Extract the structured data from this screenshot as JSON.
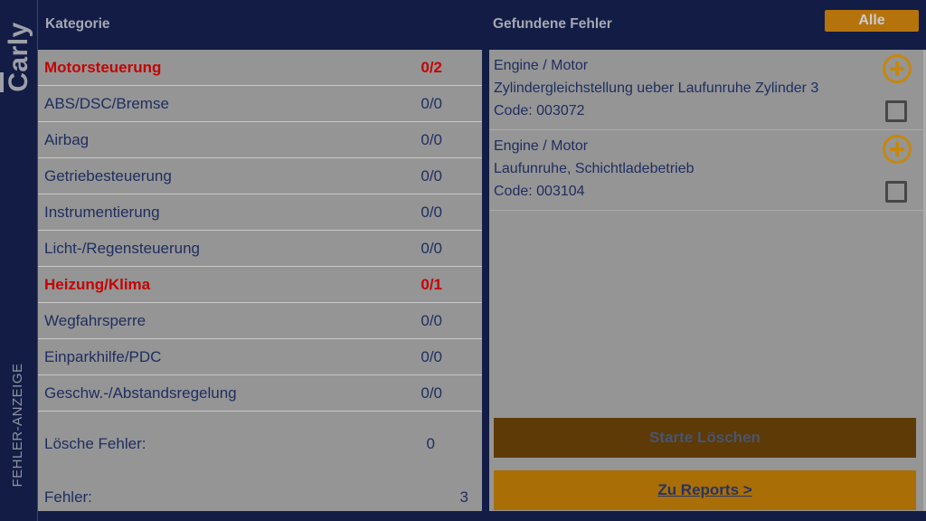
{
  "app": {
    "logo": "arly",
    "logo_first_letter": "C",
    "screen_label": "FEHLER-ANZEIGE"
  },
  "header": {
    "categories_title": "Kategorie",
    "errors_title": "Gefundene Fehler",
    "alle_button_label": "Alle"
  },
  "categories": {
    "items": [
      {
        "label": "Motorsteuerung",
        "count": "0/2",
        "alert": true
      },
      {
        "label": "ABS/DSC/Bremse",
        "count": "0/0",
        "alert": false
      },
      {
        "label": "Airbag",
        "count": "0/0",
        "alert": false
      },
      {
        "label": "Getriebesteuerung",
        "count": "0/0",
        "alert": false
      },
      {
        "label": "Instrumentierung",
        "count": "0/0",
        "alert": false
      },
      {
        "label": "Licht-/Regensteuerung",
        "count": "0/0",
        "alert": false
      },
      {
        "label": "Heizung/Klima",
        "count": "0/1",
        "alert": true
      },
      {
        "label": "Wegfahrsperre",
        "count": "0/0",
        "alert": false
      },
      {
        "label": "Einparkhilfe/PDC",
        "count": "0/0",
        "alert": false
      },
      {
        "label": "Geschw.-/Abstandsregelung",
        "count": "0/0",
        "alert": false
      }
    ],
    "summary": {
      "delete_label": "Lösche Fehler:",
      "delete_value": "0",
      "total_label": "Fehler:",
      "total_value": "3"
    }
  },
  "errors": {
    "items": [
      {
        "category": "Engine / Motor",
        "description": "Zylindergleichstellung ueber Laufunruhe Zylinder 3",
        "code": "Code: 003072"
      },
      {
        "category": "Engine / Motor",
        "description": "Laufunruhe, Schichtladebetrieb",
        "code": "Code: 003104"
      }
    ]
  },
  "actions": {
    "start_delete_label": "Starte Löschen",
    "to_reports_label": "Zu Reports >"
  },
  "colors": {
    "background_navy": "#121c45",
    "panel_gray": "#959595",
    "accent_orange": "#b5730c",
    "plus_icon_orange": "#c6870e",
    "reports_button_orange": "#aa6e06",
    "disabled_button_brown": "#5d3a06",
    "alert_red": "#c30404",
    "text_navy": "#1f2e60"
  }
}
